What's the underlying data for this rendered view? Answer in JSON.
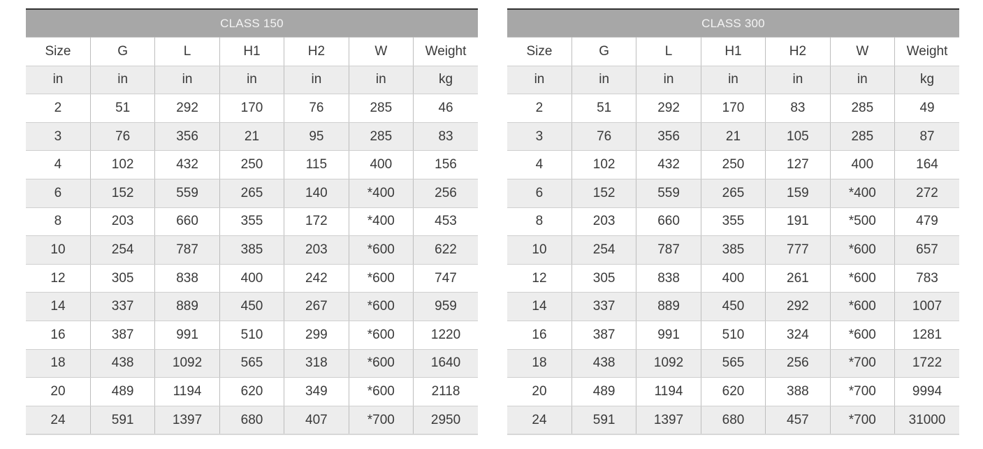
{
  "columns": [
    "Size",
    "G",
    "L",
    "H1",
    "H2",
    "W",
    "Weight"
  ],
  "units": [
    "in",
    "in",
    "in",
    "in",
    "in",
    "in",
    "kg"
  ],
  "tables": [
    {
      "title": "CLASS 150",
      "rows": [
        [
          "2",
          "51",
          "292",
          "170",
          "76",
          "285",
          "46"
        ],
        [
          "3",
          "76",
          "356",
          "21",
          "95",
          "285",
          "83"
        ],
        [
          "4",
          "102",
          "432",
          "250",
          "115",
          "400",
          "156"
        ],
        [
          "6",
          "152",
          "559",
          "265",
          "140",
          "*400",
          "256"
        ],
        [
          "8",
          "203",
          "660",
          "355",
          "172",
          "*400",
          "453"
        ],
        [
          "10",
          "254",
          "787",
          "385",
          "203",
          "*600",
          "622"
        ],
        [
          "12",
          "305",
          "838",
          "400",
          "242",
          "*600",
          "747"
        ],
        [
          "14",
          "337",
          "889",
          "450",
          "267",
          "*600",
          "959"
        ],
        [
          "16",
          "387",
          "991",
          "510",
          "299",
          "*600",
          "1220"
        ],
        [
          "18",
          "438",
          "1092",
          "565",
          "318",
          "*600",
          "1640"
        ],
        [
          "20",
          "489",
          "1194",
          "620",
          "349",
          "*600",
          "2118"
        ],
        [
          "24",
          "591",
          "1397",
          "680",
          "407",
          "*700",
          "2950"
        ]
      ]
    },
    {
      "title": "CLASS 300",
      "rows": [
        [
          "2",
          "51",
          "292",
          "170",
          "83",
          "285",
          "49"
        ],
        [
          "3",
          "76",
          "356",
          "21",
          "105",
          "285",
          "87"
        ],
        [
          "4",
          "102",
          "432",
          "250",
          "127",
          "400",
          "164"
        ],
        [
          "6",
          "152",
          "559",
          "265",
          "159",
          "*400",
          "272"
        ],
        [
          "8",
          "203",
          "660",
          "355",
          "191",
          "*500",
          "479"
        ],
        [
          "10",
          "254",
          "787",
          "385",
          "777",
          "*600",
          "657"
        ],
        [
          "12",
          "305",
          "838",
          "400",
          "261",
          "*600",
          "783"
        ],
        [
          "14",
          "337",
          "889",
          "450",
          "292",
          "*600",
          "1007"
        ],
        [
          "16",
          "387",
          "991",
          "510",
          "324",
          "*600",
          "1281"
        ],
        [
          "18",
          "438",
          "1092",
          "565",
          "256",
          "*700",
          "1722"
        ],
        [
          "20",
          "489",
          "1194",
          "620",
          "388",
          "*700",
          "9994"
        ],
        [
          "24",
          "591",
          "1397",
          "680",
          "457",
          "*700",
          "31000"
        ]
      ]
    }
  ]
}
